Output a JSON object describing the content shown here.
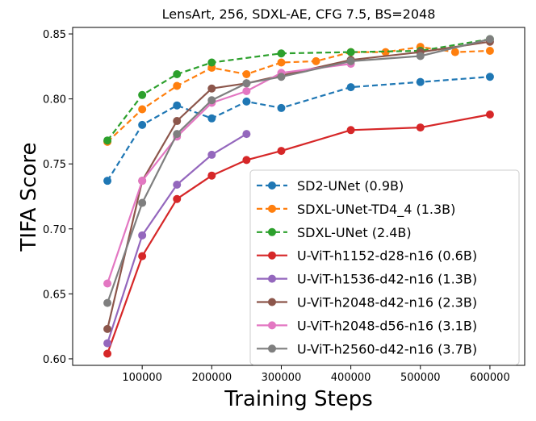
{
  "chart_data": {
    "type": "line",
    "title": "LensArt, 256, SDXL-AE, CFG 7.5, BS=2048",
    "xlabel": "Training Steps",
    "ylabel": "TIFA Score",
    "xlim": [
      0,
      650000
    ],
    "ylim": [
      0.595,
      0.855
    ],
    "xticks": [
      100000,
      200000,
      300000,
      400000,
      500000,
      600000
    ],
    "xtick_labels": [
      "100000",
      "200000",
      "300000",
      "400000",
      "500000",
      "600000"
    ],
    "yticks": [
      0.6,
      0.65,
      0.7,
      0.75,
      0.8,
      0.85
    ],
    "ytick_labels": [
      "0.60",
      "0.65",
      "0.70",
      "0.75",
      "0.80",
      "0.85"
    ],
    "grid": false,
    "legend_position": "lower-right",
    "series": [
      {
        "name": "SD2-UNet (0.9B)",
        "color": "#1f77b4",
        "dashed": true,
        "x": [
          50000,
          100000,
          150000,
          200000,
          250000,
          300000,
          400000,
          500000,
          600000
        ],
        "y": [
          0.737,
          0.78,
          0.795,
          0.785,
          0.798,
          0.793,
          0.809,
          0.813,
          0.817
        ]
      },
      {
        "name": "SDXL-UNet-TD4_4 (1.3B)",
        "color": "#ff7f0e",
        "dashed": true,
        "x": [
          50000,
          100000,
          150000,
          200000,
          250000,
          300000,
          350000,
          400000,
          450000,
          500000,
          550000,
          600000
        ],
        "y": [
          0.767,
          0.792,
          0.81,
          0.824,
          0.819,
          0.828,
          0.829,
          0.836,
          0.836,
          0.84,
          0.836,
          0.837
        ]
      },
      {
        "name": "SDXL-UNet (2.4B)",
        "color": "#2ca02c",
        "dashed": true,
        "x": [
          50000,
          100000,
          150000,
          200000,
          300000,
          400000,
          500000,
          600000
        ],
        "y": [
          0.768,
          0.803,
          0.819,
          0.828,
          0.835,
          0.836,
          0.837,
          0.846
        ]
      },
      {
        "name": "U-ViT-h1152-d28-n16 (0.6B)",
        "color": "#d62728",
        "dashed": false,
        "x": [
          50000,
          100000,
          150000,
          200000,
          250000,
          300000,
          400000,
          500000,
          600000
        ],
        "y": [
          0.604,
          0.679,
          0.723,
          0.741,
          0.753,
          0.76,
          0.776,
          0.778,
          0.788
        ]
      },
      {
        "name": "U-ViT-h1536-d42-n16 (1.3B)",
        "color": "#9467bd",
        "dashed": false,
        "x": [
          50000,
          100000,
          150000,
          200000,
          250000
        ],
        "y": [
          0.612,
          0.695,
          0.734,
          0.757,
          0.773
        ]
      },
      {
        "name": "U-ViT-h2048-d42-n16 (2.3B)",
        "color": "#8c564b",
        "dashed": false,
        "x": [
          50000,
          100000,
          150000,
          200000,
          250000,
          300000,
          400000,
          500000,
          600000
        ],
        "y": [
          0.623,
          0.737,
          0.783,
          0.808,
          0.812,
          0.818,
          0.83,
          0.836,
          0.844
        ]
      },
      {
        "name": "U-ViT-h2048-d56-n16 (3.1B)",
        "color": "#e377c2",
        "dashed": false,
        "x": [
          50000,
          100000,
          150000,
          200000,
          250000,
          300000,
          400000
        ],
        "y": [
          0.658,
          0.737,
          0.771,
          0.797,
          0.806,
          0.82,
          0.827
        ]
      },
      {
        "name": "U-ViT-h2560-d42-n16 (3.7B)",
        "color": "#7f7f7f",
        "dashed": false,
        "x": [
          50000,
          100000,
          150000,
          200000,
          250000,
          300000,
          400000,
          500000,
          600000
        ],
        "y": [
          0.643,
          0.72,
          0.773,
          0.799,
          0.812,
          0.817,
          0.829,
          0.833,
          0.846
        ]
      }
    ]
  }
}
